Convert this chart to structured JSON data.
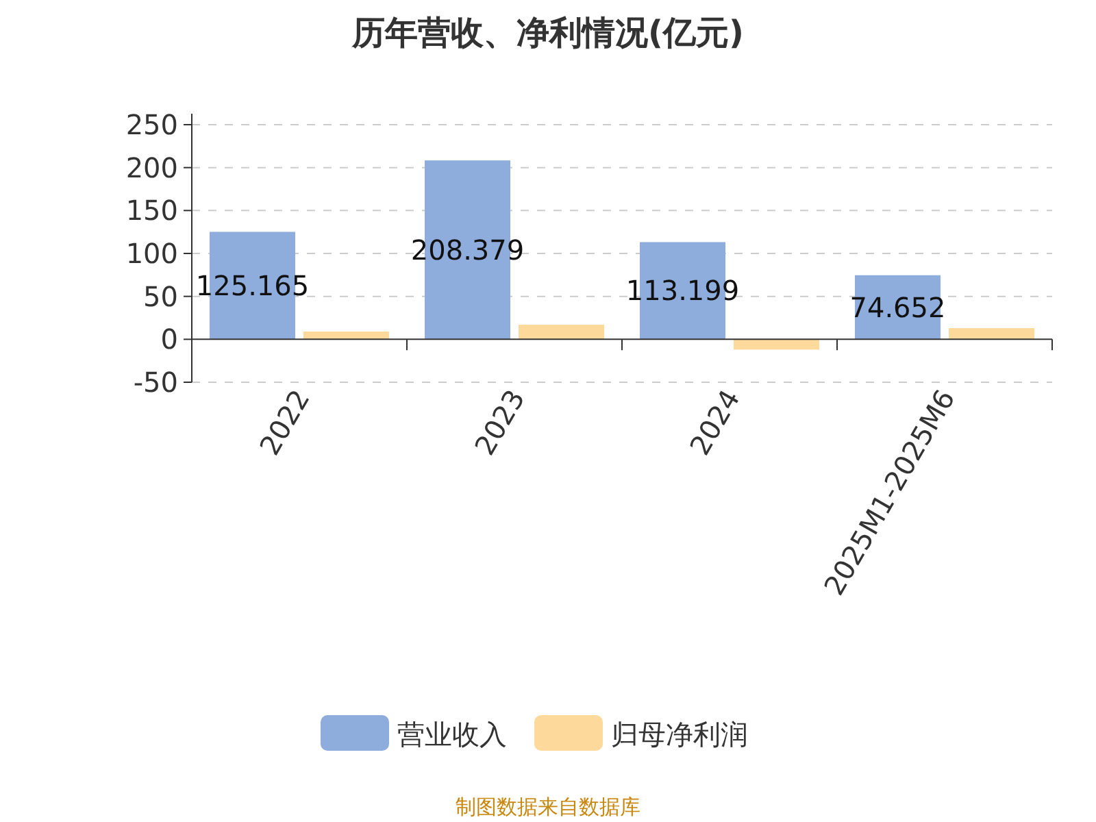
{
  "chart_data": {
    "type": "bar",
    "title": "历年营收、净利情况(亿元)",
    "categories": [
      "2022",
      "2023",
      "2024",
      "2025M1-2025M6"
    ],
    "series": [
      {
        "name": "营业收入",
        "color": "#8eacdc",
        "values": [
          125.165,
          208.379,
          113.199,
          74.652
        ],
        "value_labels": [
          "125.165",
          "208.379",
          "113.199",
          "74.652"
        ]
      },
      {
        "name": "归母净利润",
        "color": "#fdd99b",
        "values": [
          9,
          17,
          -12,
          13
        ]
      }
    ],
    "ylim": [
      -50,
      250
    ],
    "yticks": [
      -50,
      0,
      50,
      100,
      150,
      200,
      250
    ],
    "grid": "y",
    "legend": "bottom",
    "annotations": [
      "制图数据来自数据库"
    ]
  }
}
